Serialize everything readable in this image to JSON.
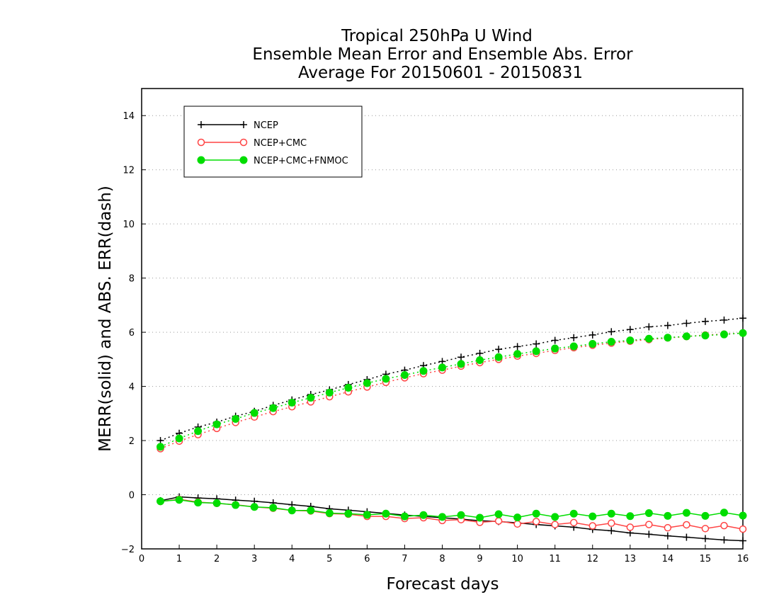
{
  "chart_data": {
    "type": "line",
    "title": "Tropical 250hPa U Wind",
    "subtitle": "Ensemble Mean Error and Ensemble Abs. Error",
    "subtitle2": "Average For 20150601 - 20150831",
    "xlabel": "Forecast days",
    "ylabel": "MERR(solid) and ABS. ERR(dash)",
    "xlim": [
      0,
      16
    ],
    "ylim": [
      -2,
      15
    ],
    "xticks": [
      0,
      1,
      2,
      3,
      4,
      5,
      6,
      7,
      8,
      9,
      10,
      11,
      12,
      13,
      14,
      15,
      16
    ],
    "yticks": [
      -2,
      0,
      2,
      4,
      6,
      8,
      10,
      12,
      14
    ],
    "grid": true,
    "legend_position": "top-left",
    "x": [
      0.5,
      1,
      1.5,
      2,
      2.5,
      3,
      3.5,
      4,
      4.5,
      5,
      5.5,
      6,
      6.5,
      7,
      7.5,
      8,
      8.5,
      9,
      9.5,
      10,
      10.5,
      11,
      11.5,
      12,
      12.5,
      13,
      13.5,
      14,
      14.5,
      15,
      15.5,
      16
    ],
    "series": [
      {
        "name": "NCEP",
        "color": "#000000",
        "marker": "plus",
        "merr": [
          -0.22,
          -0.08,
          -0.12,
          -0.15,
          -0.2,
          -0.24,
          -0.3,
          -0.37,
          -0.43,
          -0.52,
          -0.57,
          -0.63,
          -0.69,
          -0.75,
          -0.8,
          -0.85,
          -0.9,
          -0.96,
          -0.99,
          -1.04,
          -1.1,
          -1.15,
          -1.2,
          -1.28,
          -1.33,
          -1.41,
          -1.46,
          -1.52,
          -1.57,
          -1.62,
          -1.67,
          -1.7
        ],
        "abserr": [
          2.0,
          2.27,
          2.5,
          2.68,
          2.9,
          3.08,
          3.3,
          3.5,
          3.7,
          3.87,
          4.07,
          4.25,
          4.45,
          4.6,
          4.77,
          4.92,
          5.08,
          5.22,
          5.37,
          5.47,
          5.57,
          5.7,
          5.8,
          5.9,
          6.02,
          6.1,
          6.2,
          6.25,
          6.33,
          6.4,
          6.45,
          6.52
        ]
      },
      {
        "name": "NCEP+CMC",
        "color": "#ff4444",
        "marker": "open-circle",
        "merr": [
          -0.25,
          -0.17,
          -0.27,
          -0.32,
          -0.37,
          -0.45,
          -0.5,
          -0.58,
          -0.6,
          -0.7,
          -0.72,
          -0.8,
          -0.8,
          -0.88,
          -0.85,
          -0.95,
          -0.92,
          -1.02,
          -0.97,
          -1.08,
          -0.99,
          -1.1,
          -1.03,
          -1.15,
          -1.05,
          -1.2,
          -1.1,
          -1.22,
          -1.11,
          -1.25,
          -1.14,
          -1.27
        ],
        "abserr": [
          1.7,
          1.98,
          2.22,
          2.45,
          2.67,
          2.87,
          3.07,
          3.25,
          3.43,
          3.62,
          3.8,
          3.98,
          4.15,
          4.32,
          4.47,
          4.6,
          4.75,
          4.88,
          5.0,
          5.12,
          5.22,
          5.33,
          5.43,
          5.52,
          5.6,
          5.67,
          5.73,
          5.79,
          5.84,
          5.9,
          5.93,
          5.97
        ]
      },
      {
        "name": "NCEP+CMC+FNMOC",
        "color": "#00dd00",
        "marker": "filled-circle",
        "merr": [
          -0.24,
          -0.19,
          -0.29,
          -0.31,
          -0.38,
          -0.45,
          -0.48,
          -0.58,
          -0.58,
          -0.68,
          -0.7,
          -0.74,
          -0.7,
          -0.8,
          -0.75,
          -0.82,
          -0.75,
          -0.85,
          -0.72,
          -0.84,
          -0.7,
          -0.82,
          -0.7,
          -0.8,
          -0.7,
          -0.79,
          -0.68,
          -0.78,
          -0.67,
          -0.78,
          -0.66,
          -0.77
        ],
        "abserr": [
          1.77,
          2.08,
          2.35,
          2.6,
          2.8,
          3.02,
          3.2,
          3.4,
          3.58,
          3.77,
          3.95,
          4.12,
          4.28,
          4.42,
          4.57,
          4.7,
          4.83,
          4.97,
          5.08,
          5.2,
          5.3,
          5.4,
          5.48,
          5.57,
          5.65,
          5.7,
          5.76,
          5.8,
          5.85,
          5.88,
          5.92,
          5.97
        ]
      }
    ]
  }
}
